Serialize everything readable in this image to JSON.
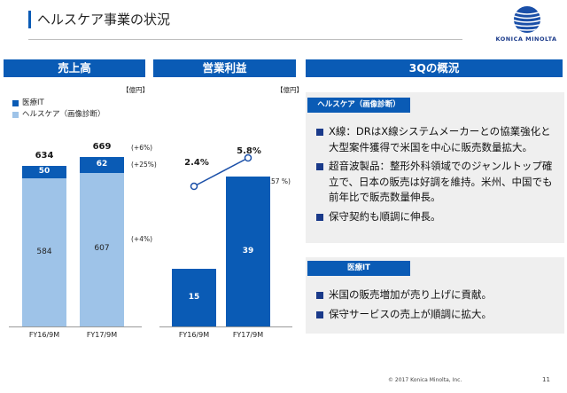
{
  "page": {
    "title": "ヘルスケア事業の状況",
    "company": "KONICA MINOLTA",
    "copyright": "© 2017 Konica Minolta, Inc.",
    "page_number": "11",
    "brand_color": "#0a5bb5"
  },
  "panels": {
    "sales_title": "売上高",
    "op_title": "営業利益",
    "q3_title": "3Qの概況"
  },
  "sales_chart": {
    "unit": "【億円】",
    "legend": [
      {
        "label": "医療IT",
        "color": "#0a5bb5"
      },
      {
        "label": "ヘルスケア（画像診断）",
        "color": "#9ec3e8"
      }
    ],
    "growth_labels": [
      "(+6%)",
      "(+25%)",
      "(+4%)"
    ]
  },
  "op_chart": {
    "unit": "【億円】",
    "growth_label": "(+157 %)"
  },
  "chart_data": [
    {
      "type": "bar",
      "stacked": true,
      "categories": [
        "FY16/9M",
        "FY17/9M"
      ],
      "series": [
        {
          "name": "ヘルスケア（画像診断）",
          "values": [
            584,
            607
          ],
          "color": "#9ec3e8"
        },
        {
          "name": "医療IT",
          "values": [
            50,
            62
          ],
          "color": "#0a5bb5"
        }
      ],
      "totals": [
        634,
        669
      ],
      "ylim": [
        0,
        700
      ]
    },
    {
      "type": "bar",
      "categories": [
        "FY16/9M",
        "FY17/9M"
      ],
      "values": [
        15,
        39
      ],
      "ylim": [
        0,
        45
      ],
      "margin_line": {
        "type": "line",
        "values": [
          2.4,
          5.8
        ],
        "labels": [
          "2.4%",
          "5.8%"
        ]
      }
    }
  ],
  "overview": {
    "healthcare_title": "ヘルスケア（画像診断）",
    "healthcare_items": [
      "X線：DRはX線システムメーカーとの協業強化と大型案件獲得で米国を中心に販売数量拡大。",
      "超音波製品：整形外科領域でのジャンルトップ確立で、日本の販売は好調を維持。米州、中国でも前年比で販売数量伸長。",
      "保守契約も順調に伸長。"
    ],
    "medicalit_title": "医療IT",
    "medicalit_items": [
      "米国の販売増加が売り上げに貢献。",
      "保守サービスの売上が順調に拡大。"
    ]
  }
}
